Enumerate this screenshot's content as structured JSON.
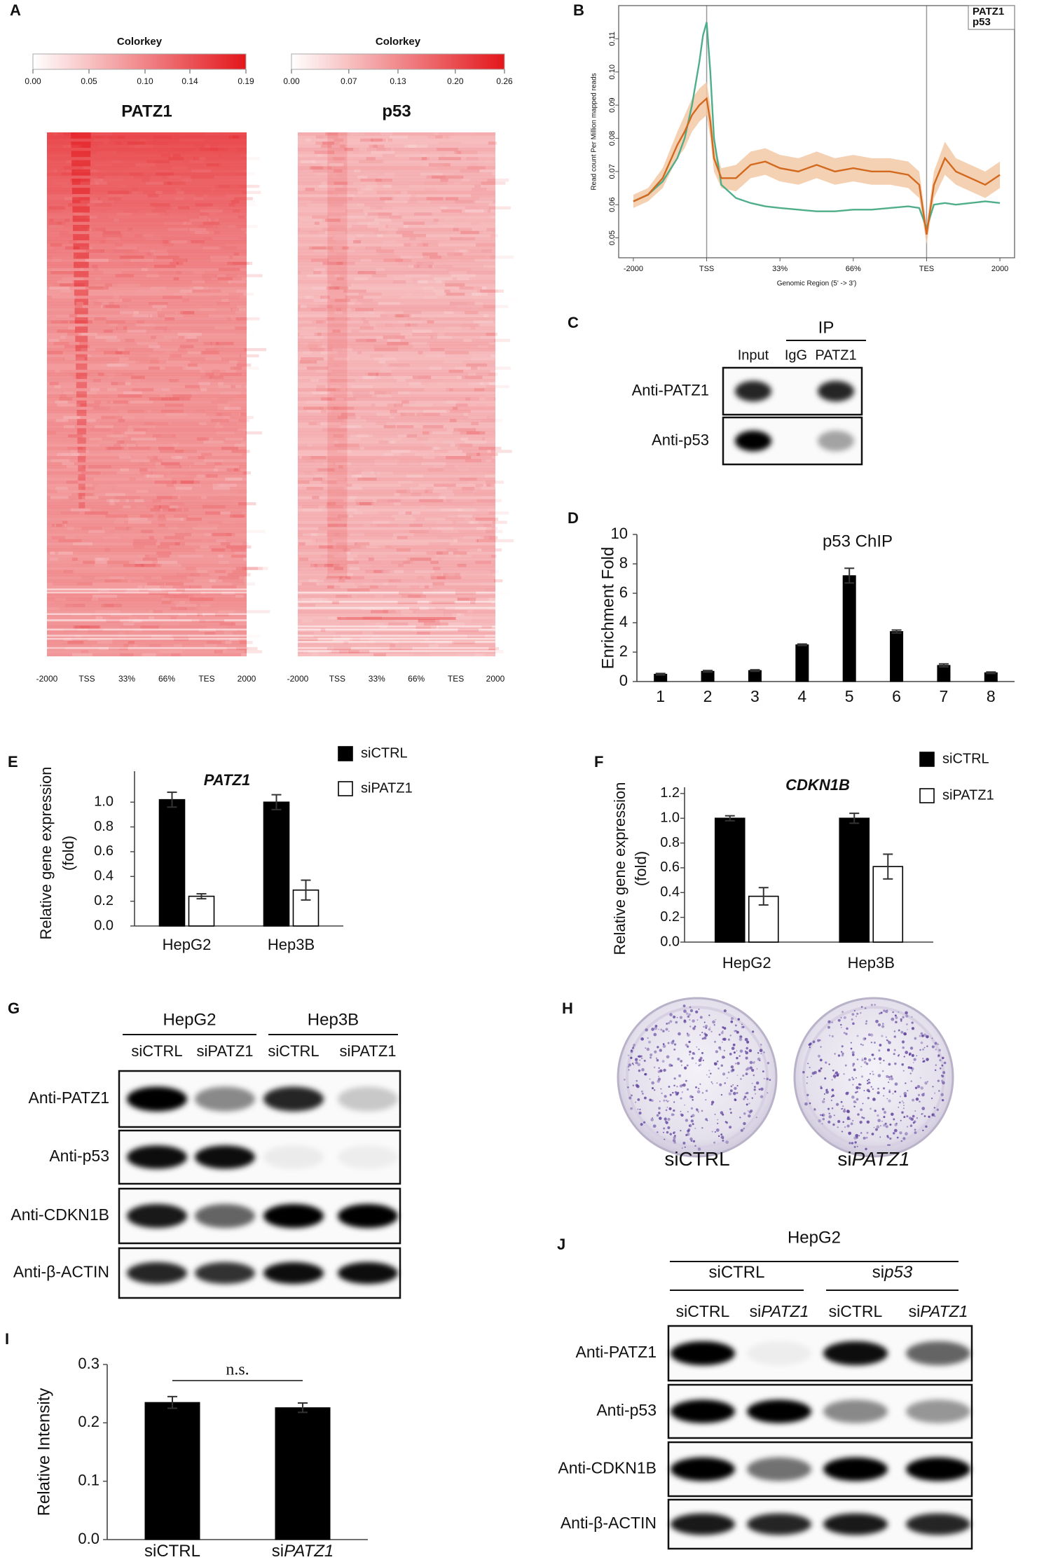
{
  "panel_letters": [
    "A",
    "B",
    "C",
    "D",
    "E",
    "F",
    "G",
    "H",
    "I",
    "J"
  ],
  "chart_data": [
    {
      "type": "heatmap",
      "title": "PATZ1",
      "colorkey_title": "Colorkey",
      "color": "#e3161b",
      "xlim": [
        0,
        0.19
      ],
      "xticks": [
        {
          "value": 0,
          "label": "0.00"
        },
        0.05,
        {
          "value": 0.1,
          "label": "0.10"
        },
        0.14,
        0.19
      ],
      "column_labels": [
        "-2000",
        "TSS",
        "33%",
        "66%",
        "TES",
        "2000"
      ]
    },
    {
      "type": "heatmap",
      "title": "p53",
      "colorkey_title": "Colorkey",
      "color": "#e3161b",
      "xlim": [
        0,
        0.26
      ],
      "xticks": [
        {
          "value": 0,
          "label": "0.00"
        },
        0.07,
        0.13,
        {
          "value": 0.2,
          "label": "0.20"
        },
        0.26
      ],
      "column_labels": [
        "-2000",
        "TSS",
        "33%",
        "66%",
        "TES",
        "2000"
      ]
    },
    {
      "type": "line",
      "y_label": "Read count Per Million mapped reads",
      "x_label": "Genomic Region (5' -> 3')",
      "x": [
        0,
        4,
        8,
        12,
        14,
        16,
        18,
        19,
        20,
        21,
        22,
        24,
        28,
        32,
        36,
        40,
        45,
        50,
        55,
        60,
        65,
        70,
        75,
        78,
        80,
        82,
        85,
        88,
        92,
        96,
        100
      ],
      "xlim": [
        -4,
        104
      ],
      "xticks": [
        {
          "value": 0,
          "label": "-2000"
        },
        {
          "value": 20,
          "label": "TSS"
        },
        {
          "value": 40,
          "label": "33%"
        },
        {
          "value": 60,
          "label": "66%"
        },
        {
          "value": 80,
          "label": "TES"
        },
        {
          "value": 100,
          "label": "2000"
        }
      ],
      "ylim": [
        0.044,
        0.12
      ],
      "yticks": [
        0.05,
        0.06,
        0.07,
        0.08,
        0.09,
        {
          "value": 0.1,
          "label": "0.10"
        },
        0.11
      ],
      "vlines": [
        20,
        80
      ],
      "legend": "upper right",
      "series": [
        {
          "name": "PATZ1",
          "color": "#4fae8a",
          "values": [
            0.061,
            0.063,
            0.067,
            0.074,
            0.08,
            0.09,
            0.103,
            0.111,
            0.115,
            0.1,
            0.08,
            0.066,
            0.062,
            0.0605,
            0.0595,
            0.059,
            0.0585,
            0.058,
            0.058,
            0.0585,
            0.0585,
            0.059,
            0.0595,
            0.059,
            0.053,
            0.06,
            0.0605,
            0.06,
            0.0605,
            0.061,
            0.0605
          ]
        },
        {
          "name": "p53",
          "color": "#d2691e",
          "band_color": "#f2c9a6",
          "values": [
            0.061,
            0.063,
            0.068,
            0.078,
            0.082,
            0.087,
            0.09,
            0.091,
            0.092,
            0.085,
            0.074,
            0.068,
            0.068,
            0.072,
            0.073,
            0.071,
            0.07,
            0.072,
            0.07,
            0.071,
            0.07,
            0.07,
            0.069,
            0.066,
            0.051,
            0.066,
            0.074,
            0.07,
            0.068,
            0.066,
            0.069
          ],
          "errors": [
            0.002,
            0.002,
            0.003,
            0.004,
            0.005,
            0.005,
            0.005,
            0.005,
            0.005,
            0.005,
            0.004,
            0.003,
            0.004,
            0.004,
            0.004,
            0.004,
            0.004,
            0.004,
            0.004,
            0.004,
            0.004,
            0.004,
            0.004,
            0.004,
            0.003,
            0.004,
            0.005,
            0.004,
            0.004,
            0.004,
            0.004
          ]
        }
      ]
    },
    {
      "type": "bar",
      "title": "p53 ChIP",
      "y_label": "Enrichment Fold",
      "color": "#000000",
      "categories": [
        "1",
        "2",
        "3",
        "4",
        "5",
        "6",
        "7",
        "8"
      ],
      "values": [
        0.5,
        0.7,
        0.75,
        2.5,
        7.2,
        3.4,
        1.1,
        0.6
      ],
      "errors": [
        0.05,
        0.05,
        0.05,
        0.05,
        0.5,
        0.1,
        0.1,
        0.05
      ],
      "ylim": [
        0,
        10
      ],
      "yticks": [
        0,
        2,
        4,
        6,
        8,
        10
      ]
    },
    {
      "type": "grouped_bar",
      "title": "PATZ1",
      "y_label": [
        "Relative gene expression",
        "(fold)"
      ],
      "categories": [
        "HepG2",
        "Hep3B"
      ],
      "series": [
        {
          "name": "siCTRL",
          "color": "#000000",
          "values": [
            1.02,
            1.0
          ],
          "errors": [
            0.06,
            0.06
          ]
        },
        {
          "name": "siPATZ1",
          "color": "#ffffff",
          "values": [
            0.24,
            0.29
          ],
          "errors": [
            0.02,
            0.08
          ]
        }
      ],
      "ylim": [
        0,
        1.25
      ],
      "yticks": [
        {
          "value": 0,
          "label": "0.0"
        },
        0.2,
        0.4,
        0.6,
        0.8,
        {
          "value": 1,
          "label": "1.0"
        }
      ]
    },
    {
      "type": "grouped_bar",
      "title": "CDKN1B",
      "y_label": [
        "Relative gene expression",
        "(fold)"
      ],
      "categories": [
        "HepG2",
        "Hep3B"
      ],
      "series": [
        {
          "name": "siCTRL",
          "color": "#000000",
          "values": [
            1.0,
            1.0
          ],
          "errors": [
            0.02,
            0.04
          ]
        },
        {
          "name": "siPATZ1",
          "color": "#ffffff",
          "values": [
            0.37,
            0.61
          ],
          "errors": [
            0.07,
            0.1
          ]
        }
      ],
      "ylim": [
        0,
        1.25
      ],
      "yticks": [
        {
          "value": 0,
          "label": "0.0"
        },
        0.2,
        0.4,
        0.6,
        0.8,
        {
          "value": 1,
          "label": "1.0"
        },
        1.2
      ]
    },
    {
      "type": "bar",
      "y_label": "Relative Intensity",
      "color": "#000000",
      "categories": [
        [
          "siCTRL"
        ],
        [
          "si",
          "PATZ1"
        ]
      ],
      "values": [
        0.235,
        0.226
      ],
      "errors": [
        0.01,
        0.008
      ],
      "annotation": "n.s.",
      "ylim": [
        0,
        0.3
      ],
      "yticks": [
        {
          "value": 0,
          "label": "0.0"
        },
        0.1,
        0.2,
        0.3
      ]
    }
  ],
  "blots": [
    {
      "groups": [
        "IP"
      ],
      "lanes": [
        "Input",
        "IgG",
        "PATZ1"
      ],
      "rows": [
        "Anti-PATZ1",
        "Anti-p53"
      ]
    },
    {
      "groups": [
        "HepG2",
        "Hep3B"
      ],
      "lanes": [
        "siCTRL",
        "siPATZ1",
        "siCTRL",
        "siPATZ1"
      ],
      "rows": [
        "Anti-PATZ1",
        "Anti-p53",
        "Anti-CDKN1B",
        "Anti-β-ACTIN"
      ]
    },
    {
      "title": "HepG2",
      "groups": [
        [
          "siCTRL"
        ],
        [
          "si",
          "p53"
        ]
      ],
      "lanes": [
        [
          "siCTRL"
        ],
        [
          "si",
          "PATZ1"
        ],
        [
          "siCTRL"
        ],
        [
          "si",
          "PATZ1"
        ]
      ],
      "rows": [
        "Anti-PATZ1",
        "Anti-p53",
        "Anti-CDKN1B",
        "Anti-β-ACTIN"
      ]
    }
  ],
  "plates": {
    "labels": [
      [
        "siCTRL"
      ],
      [
        "si",
        "PATZ1"
      ]
    ]
  }
}
